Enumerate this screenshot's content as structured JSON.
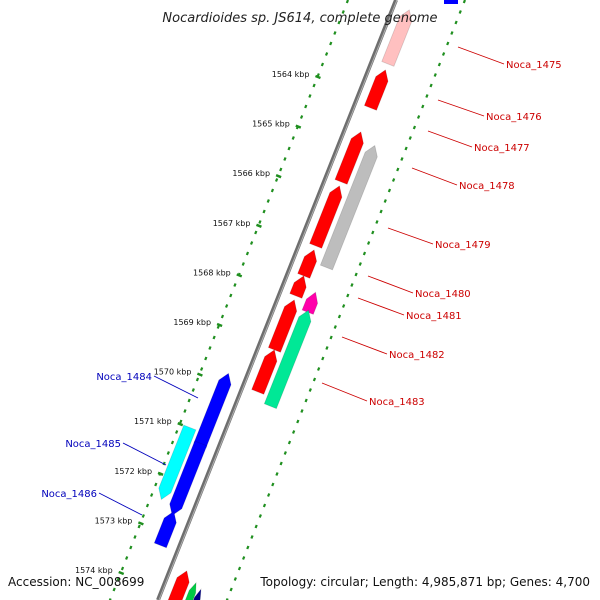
{
  "map": {
    "title": "Nocardioides sp. JS614, complete genome",
    "accession_text": "Accession: NC_008699",
    "summary_text": "Topology: circular; Length: 4,985,871 bp; Genes: 4,700",
    "colors": {
      "backbone": "#7a7a7a",
      "tick_track": "#1f8f1f",
      "label_right": "#cc0000",
      "label_left": "#0000bb"
    },
    "ruler": [
      {
        "label": "1564 kbp"
      },
      {
        "label": "1565 kbp"
      },
      {
        "label": "1566 kbp"
      },
      {
        "label": "1567 kbp"
      },
      {
        "label": "1568 kbp"
      },
      {
        "label": "1569 kbp"
      },
      {
        "label": "1570 kbp"
      },
      {
        "label": "1571 kbp"
      },
      {
        "label": "1572 kbp"
      },
      {
        "label": "1573 kbp"
      },
      {
        "label": "1574 kbp"
      }
    ],
    "labelled_genes": [
      {
        "name": "Noca_1475",
        "color": "#ffc0c0"
      },
      {
        "name": "Noca_1476",
        "color": "#ff0000"
      },
      {
        "name": "Noca_1477",
        "color": "#ff0000"
      },
      {
        "name": "Noca_1478",
        "color": "#ff0000"
      },
      {
        "name": "Noca_1479",
        "color": "#bdbdbd"
      },
      {
        "name": "Noca_1480",
        "color": "#ff0000"
      },
      {
        "name": "Noca_1481",
        "color": "#ff00aa"
      },
      {
        "name": "Noca_1482",
        "color": "#ff0000"
      },
      {
        "name": "Noca_1483",
        "color": "#00e896"
      },
      {
        "name": "Noca_1484",
        "color": "#0000ff"
      },
      {
        "name": "Noca_1485",
        "color": "#00ffff"
      },
      {
        "name": "Noca_1486",
        "color": "#0000ff"
      }
    ]
  }
}
